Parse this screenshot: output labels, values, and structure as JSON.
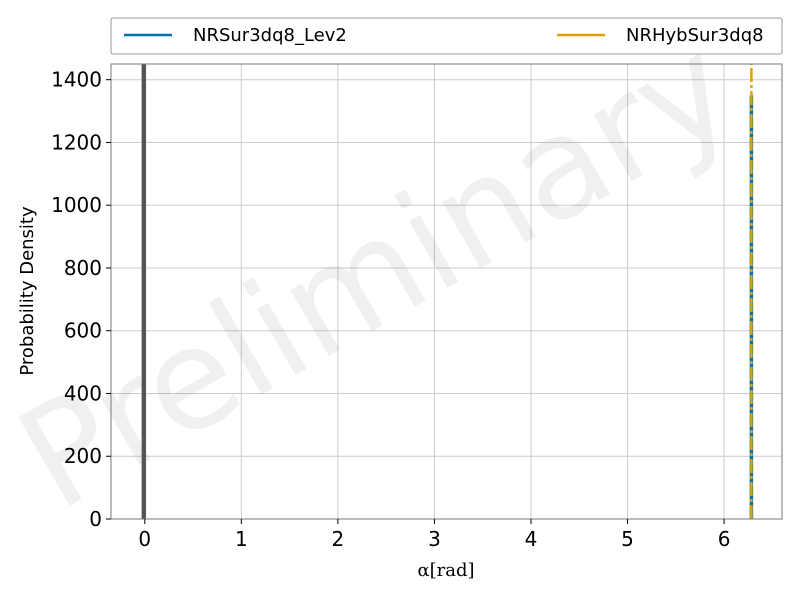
{
  "chart_data": {
    "type": "line",
    "xlabel": "α[rad]",
    "ylabel": "Probability Density",
    "xlim": [
      -0.35,
      6.6
    ],
    "ylim": [
      0,
      1450
    ],
    "xticks": [
      0,
      1,
      2,
      3,
      4,
      5,
      6
    ],
    "xtick_labels": [
      "0",
      "1",
      "2",
      "3",
      "4",
      "5",
      "6"
    ],
    "yticks": [
      0,
      200,
      400,
      600,
      800,
      1000,
      1200,
      1400
    ],
    "ytick_labels": [
      "0",
      "200",
      "400",
      "600",
      "800",
      "1000",
      "1200",
      "1400"
    ],
    "grid": true,
    "legend_position": "top, outside plot, two columns",
    "watermark": "Preliminary",
    "reference_lines": [
      {
        "x": -0.02,
        "color": "#555555"
      },
      {
        "x": 0.0,
        "color": "#555555"
      }
    ],
    "series": [
      {
        "name": "NRSur3dq8_Lev2",
        "color": "#0072b2",
        "x": [
          6.2832,
          6.2832
        ],
        "y": [
          0,
          1350
        ]
      },
      {
        "name": "NRHybSur3dq8",
        "color": "#e69f00",
        "x": [
          6.2832,
          6.2832
        ],
        "y": [
          0,
          1450
        ]
      }
    ]
  }
}
